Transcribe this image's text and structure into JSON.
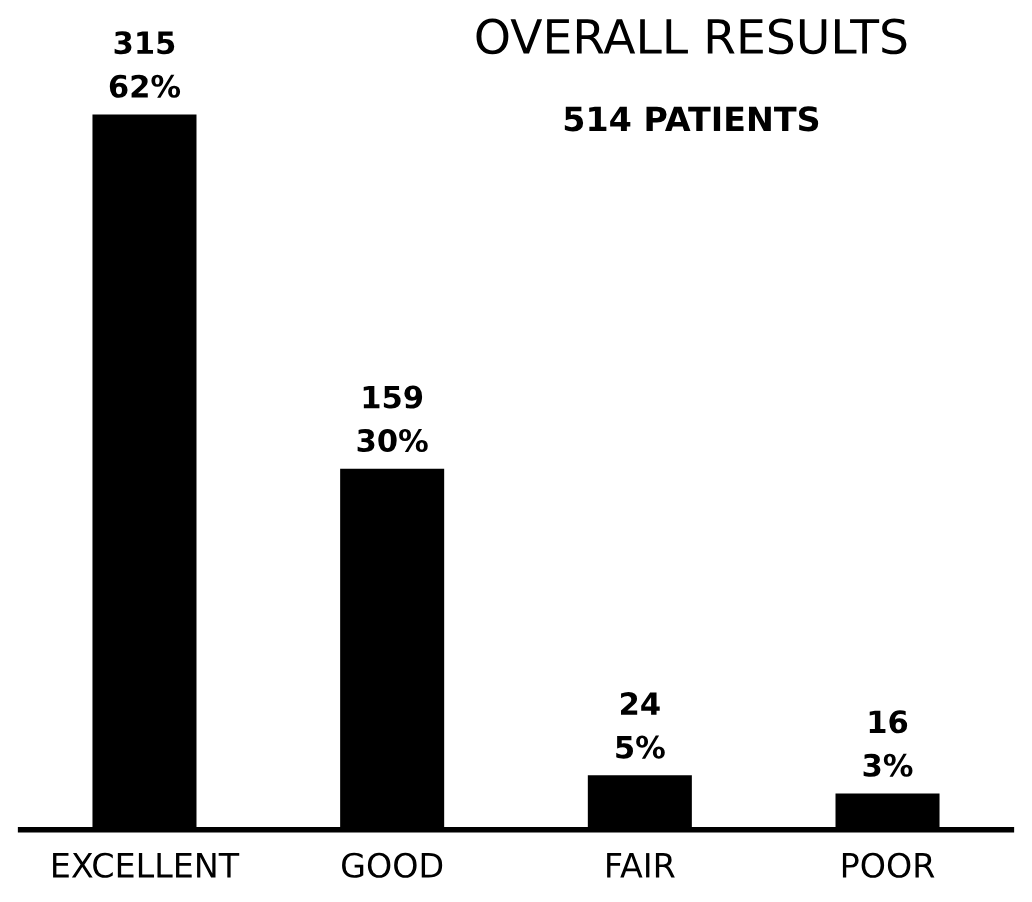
{
  "chart_data": {
    "type": "bar",
    "title": "OVERALL RESULTS",
    "subtitle": "514 PATIENTS",
    "categories": [
      "EXCELLENT",
      "GOOD",
      "FAIR",
      "POOR"
    ],
    "values": [
      315,
      159,
      24,
      16
    ],
    "value_labels": [
      "315\n62%",
      "159\n30%",
      "24\n5%",
      "16\n3%"
    ],
    "color": "#000000",
    "grid": false,
    "legend": false
  }
}
